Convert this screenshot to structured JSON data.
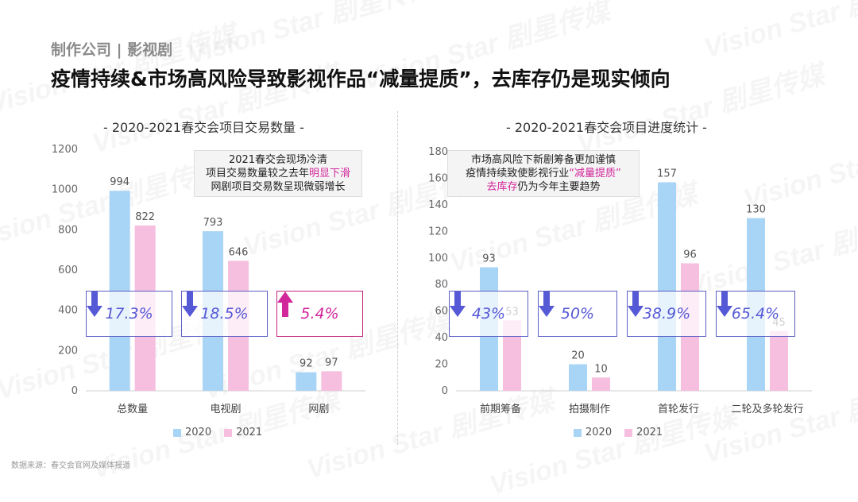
{
  "header": {
    "category": "制作公司 | 影视剧",
    "headline": "疫情持续&市场高风险导致影视作品“减量提质”，去库存仍是现实倾向"
  },
  "watermark_text": "Vision Star 剧星传媒",
  "source": "数据来源：春交会官网及媒体报道",
  "colors": {
    "series_2020": "#a8d4f5",
    "series_2021": "#f6bfdf",
    "down": "#5659d6",
    "up": "#d2269b"
  },
  "chart_data": [
    {
      "type": "bar",
      "title": "- 2020-2021春交会项目交易数量 -",
      "categories": [
        "总数量",
        "电视剧",
        "网剧"
      ],
      "series": [
        {
          "name": "2020",
          "values": [
            994,
            793,
            92
          ]
        },
        {
          "name": "2021",
          "values": [
            822,
            646,
            97
          ]
        }
      ],
      "ylim": [
        0,
        1200
      ],
      "yticks": [
        "0",
        "200",
        "400",
        "600",
        "800",
        "1000",
        "1200"
      ],
      "legend": "bottom",
      "changes": [
        {
          "direction": "down",
          "text": "17.3%"
        },
        {
          "direction": "down",
          "text": "18.5%"
        },
        {
          "direction": "up",
          "text": "5.4%"
        }
      ],
      "note": {
        "line1": "2021春交会现场冷清",
        "line2_pre": "项目交易数量较之去年",
        "line2_hl": "明显下滑",
        "line3": "网剧项目交易数呈现微弱增长"
      }
    },
    {
      "type": "bar",
      "title": "- 2020-2021春交会项目进度统计 -",
      "categories": [
        "前期筹备",
        "拍摄制作",
        "首轮发行",
        "二轮及多轮发行"
      ],
      "series": [
        {
          "name": "2020",
          "values": [
            93,
            20,
            157,
            130
          ]
        },
        {
          "name": "2021",
          "values": [
            53,
            10,
            96,
            45
          ]
        }
      ],
      "ylim": [
        0,
        180
      ],
      "yticks": [
        "0",
        "20",
        "40",
        "60",
        "80",
        "100",
        "120",
        "140",
        "160",
        "180"
      ],
      "legend": "bottom",
      "changes": [
        {
          "direction": "down",
          "text": "43%"
        },
        {
          "direction": "down",
          "text": "50%"
        },
        {
          "direction": "down",
          "text": "38.9%"
        },
        {
          "direction": "down",
          "text": "65.4%"
        }
      ],
      "note": {
        "line1": "市场高风险下新剧筹备更加谨慎",
        "line2_pre": "疫情持续致使影视行业",
        "line2_hl": "“减量提质”",
        "line3_hl": "去库存",
        "line3_post": "仍为今年主要趋势"
      }
    }
  ]
}
